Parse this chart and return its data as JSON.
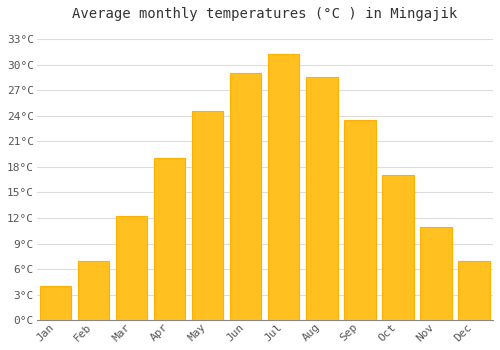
{
  "title": "Average monthly temperatures (°C ) in Mingajik",
  "months": [
    "Jan",
    "Feb",
    "Mar",
    "Apr",
    "May",
    "Jun",
    "Jul",
    "Aug",
    "Sep",
    "Oct",
    "Nov",
    "Dec"
  ],
  "values": [
    4.0,
    7.0,
    12.2,
    19.0,
    24.5,
    29.0,
    31.2,
    28.5,
    23.5,
    17.0,
    11.0,
    7.0
  ],
  "bar_color": "#FFC020",
  "bar_edge_color": "#FFB000",
  "background_color": "#ffffff",
  "grid_color": "#dddddd",
  "ytick_labels": [
    "0°C",
    "3°C",
    "6°C",
    "9°C",
    "12°C",
    "15°C",
    "18°C",
    "21°C",
    "24°C",
    "27°C",
    "30°C",
    "33°C"
  ],
  "ytick_values": [
    0,
    3,
    6,
    9,
    12,
    15,
    18,
    21,
    24,
    27,
    30,
    33
  ],
  "ylim": [
    0,
    34.5
  ],
  "title_fontsize": 10,
  "tick_fontsize": 8,
  "font_family": "monospace",
  "bar_width": 0.82
}
